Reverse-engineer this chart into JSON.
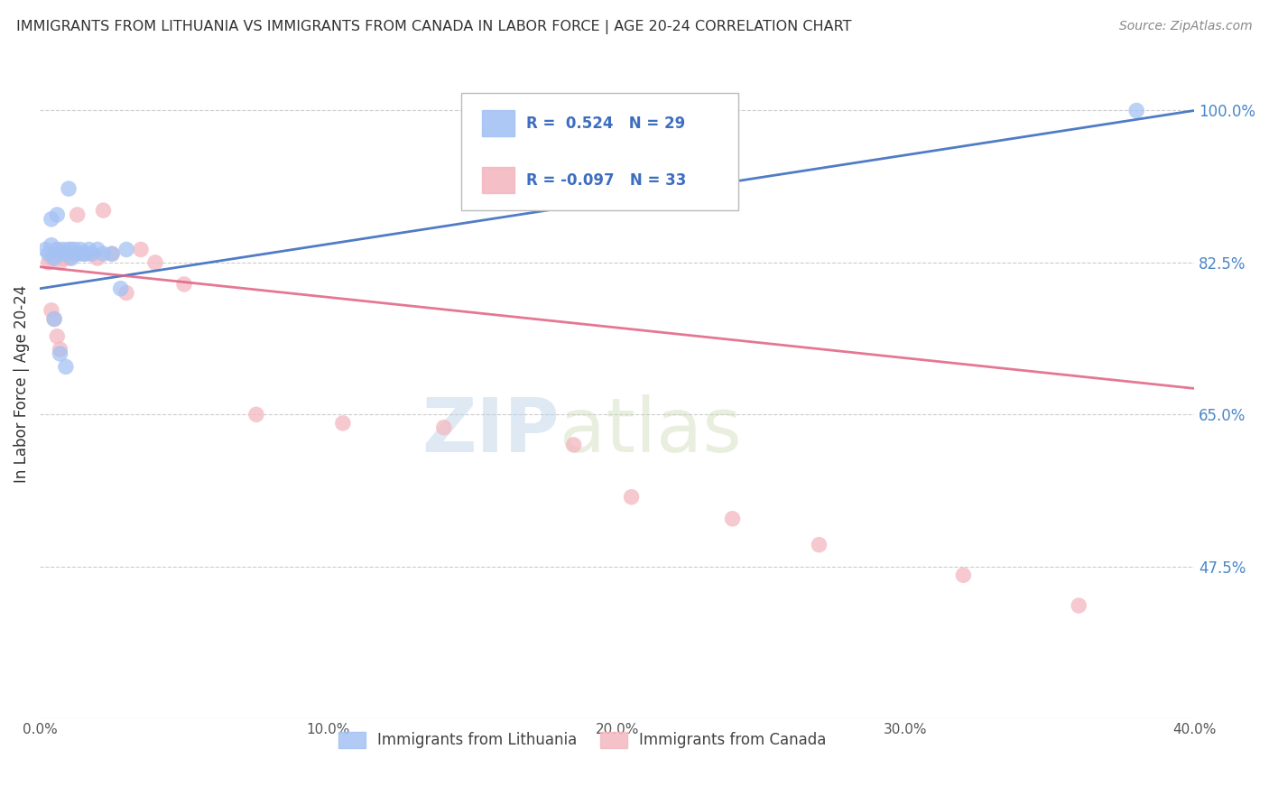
{
  "title": "IMMIGRANTS FROM LITHUANIA VS IMMIGRANTS FROM CANADA IN LABOR FORCE | AGE 20-24 CORRELATION CHART",
  "source": "Source: ZipAtlas.com",
  "ylabel": "In Labor Force | Age 20-24",
  "xlim": [
    0.0,
    40.0
  ],
  "ylim": [
    30.0,
    107.0
  ],
  "yticks": [
    47.5,
    65.0,
    82.5,
    100.0
  ],
  "xticks": [
    0.0,
    10.0,
    20.0,
    30.0,
    40.0
  ],
  "xtick_labels": [
    "0.0%",
    "10.0%",
    "20.0%",
    "30.0%",
    "40.0%"
  ],
  "ytick_labels": [
    "47.5%",
    "65.0%",
    "82.5%",
    "100.0%"
  ],
  "blue_R": 0.524,
  "blue_N": 29,
  "pink_R": -0.097,
  "pink_N": 33,
  "watermark_zip": "ZIP",
  "watermark_atlas": "atlas",
  "blue_color": "#a4c2f4",
  "pink_color": "#f4b8c1",
  "blue_line_color": "#3d6ebf",
  "pink_line_color": "#e06080",
  "background_color": "#ffffff",
  "grid_color": "#cccccc",
  "blue_scatter_x": [
    0.2,
    0.3,
    0.4,
    0.5,
    0.6,
    0.7,
    0.8,
    0.9,
    1.0,
    1.1,
    1.2,
    1.3,
    1.4,
    1.5,
    1.6,
    1.7,
    1.8,
    2.0,
    2.2,
    2.5,
    3.0,
    0.5,
    0.7,
    0.9,
    2.8,
    0.4,
    0.6,
    1.0,
    38.0
  ],
  "blue_scatter_y": [
    84.0,
    83.5,
    84.5,
    83.0,
    84.0,
    83.5,
    84.0,
    83.5,
    84.0,
    83.0,
    84.0,
    83.5,
    84.0,
    83.5,
    83.5,
    84.0,
    83.5,
    84.0,
    83.5,
    83.5,
    84.0,
    76.0,
    72.0,
    70.5,
    79.5,
    87.5,
    88.0,
    91.0,
    100.0
  ],
  "pink_scatter_x": [
    0.3,
    0.4,
    0.5,
    0.6,
    0.7,
    0.8,
    0.9,
    1.0,
    1.1,
    1.2,
    1.5,
    1.8,
    2.0,
    2.5,
    3.0,
    4.0,
    5.0,
    3.5,
    1.3,
    2.2,
    0.4,
    0.5,
    0.6,
    0.7,
    7.5,
    10.5,
    14.0,
    18.5,
    20.5,
    24.0,
    27.0,
    32.0,
    36.0
  ],
  "pink_scatter_y": [
    82.5,
    83.0,
    83.5,
    84.0,
    82.5,
    83.0,
    83.5,
    83.0,
    84.0,
    83.5,
    83.5,
    83.5,
    83.0,
    83.5,
    79.0,
    82.5,
    80.0,
    84.0,
    88.0,
    88.5,
    77.0,
    76.0,
    74.0,
    72.5,
    65.0,
    64.0,
    63.5,
    61.5,
    55.5,
    53.0,
    50.0,
    46.5,
    43.0
  ],
  "blue_trendline_x0": 0.0,
  "blue_trendline_y0": 79.5,
  "blue_trendline_x1": 40.0,
  "blue_trendline_y1": 100.0,
  "pink_trendline_x0": 0.0,
  "pink_trendline_y0": 82.0,
  "pink_trendline_x1": 40.0,
  "pink_trendline_y1": 68.0
}
